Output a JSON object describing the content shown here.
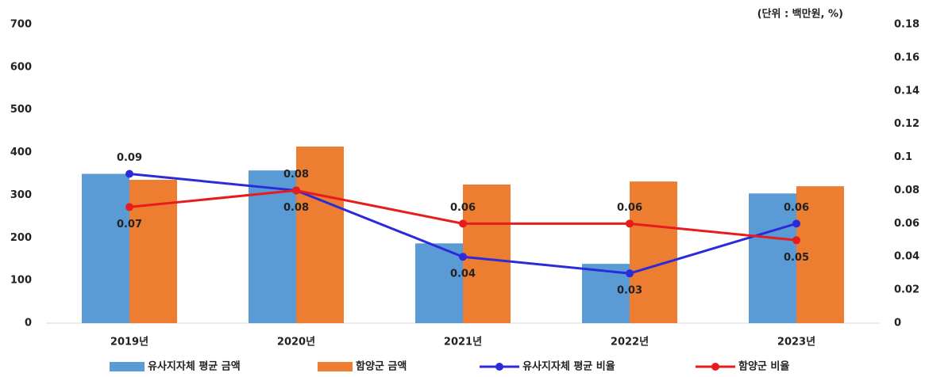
{
  "chart_data": {
    "type": "bar-line",
    "annotation": "(단위 : 백만원, %)",
    "categories": [
      "2019년",
      "2020년",
      "2021년",
      "2022년",
      "2023년"
    ],
    "series": [
      {
        "name": "유사지자체 평균 금액",
        "type": "bar",
        "color": "#5b9bd5",
        "values": [
          350,
          358,
          187,
          139,
          304
        ]
      },
      {
        "name": "함양군 금액",
        "type": "bar",
        "color": "#ed7d31",
        "values": [
          336,
          414,
          325,
          332,
          321
        ]
      },
      {
        "name": "유사지자체 평균 비율",
        "type": "line",
        "axis": "y2",
        "color": "#2b2bd9",
        "values": [
          0.09,
          0.08,
          0.04,
          0.03,
          0.06
        ]
      },
      {
        "name": "함양군 비율",
        "type": "line",
        "axis": "y2",
        "color": "#e81c1c",
        "values": [
          0.07,
          0.08,
          0.06,
          0.06,
          0.05
        ]
      }
    ],
    "ylim": [
      0,
      700
    ],
    "yticks": [
      0,
      100,
      200,
      300,
      400,
      500,
      600,
      700
    ],
    "y2lim": [
      0,
      0.18
    ],
    "y2ticks": [
      0,
      0.02,
      0.04,
      0.06,
      0.08,
      0.1,
      0.12,
      0.14,
      0.16,
      0.18
    ],
    "legend": "bottom"
  }
}
